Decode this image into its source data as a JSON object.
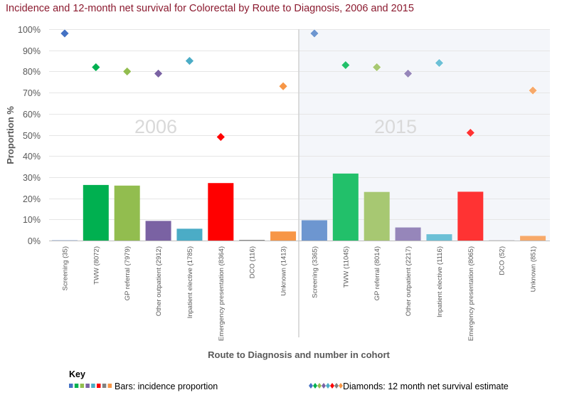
{
  "chart_data": {
    "type": "bar",
    "title": "Incidence and 12-month net survival for Colorectal by Route to Diagnosis, 2006 and 2015",
    "xlabel": "Route to Diagnosis and number in cohort",
    "ylabel": "Proportion %",
    "ylim": [
      0,
      100
    ],
    "yticks": [
      "0%",
      "10%",
      "20%",
      "30%",
      "40%",
      "50%",
      "60%",
      "70%",
      "80%",
      "90%",
      "100%"
    ],
    "grid": true,
    "panels": [
      {
        "period": "2006",
        "categories": [
          "Screening (35)",
          "TWW (8072)",
          "GP referral (7979)",
          "Other outpatient (2912)",
          "Inpatient elective (1785)",
          "Emergency presentation (8364)",
          "DCO (116)",
          "Unknown (1413)"
        ],
        "bars_incidence_pct": [
          0.1,
          26.3,
          26,
          9.3,
          5.6,
          27.2,
          0.3,
          4.3
        ],
        "diamonds_survival_pct": [
          98,
          82,
          80,
          79,
          85,
          49,
          null,
          73
        ]
      },
      {
        "period": "2015",
        "categories": [
          "Screening (3365)",
          "TWW (11045)",
          "GP referral (8014)",
          "Other outpatient (2217)",
          "Inpatient elective (1116)",
          "Emergency presentation (8065)",
          "DCO (52)",
          "Unknown (851)"
        ],
        "bars_incidence_pct": [
          9.6,
          31.7,
          23,
          6.2,
          3,
          23.1,
          0.1,
          2.2
        ],
        "diamonds_survival_pct": [
          98,
          83,
          82,
          79,
          84,
          51,
          null,
          71
        ]
      }
    ],
    "colors_2006": [
      "#4472c4",
      "#00b050",
      "#92bd4f",
      "#7a62a3",
      "#4bacc6",
      "#ff0000",
      "#808080",
      "#f79646"
    ],
    "colors_2015": [
      "#6d96d0",
      "#22c06a",
      "#a7c872",
      "#9686ba",
      "#6cc0d6",
      "#ff3333",
      "#a0a0a0",
      "#f7a96a"
    ],
    "legend": {
      "position": "bottom",
      "title": "Key",
      "bars_label": "Bars: incidence proportion",
      "diamonds_label": "Diamonds: 12 month net survival estimate"
    }
  }
}
